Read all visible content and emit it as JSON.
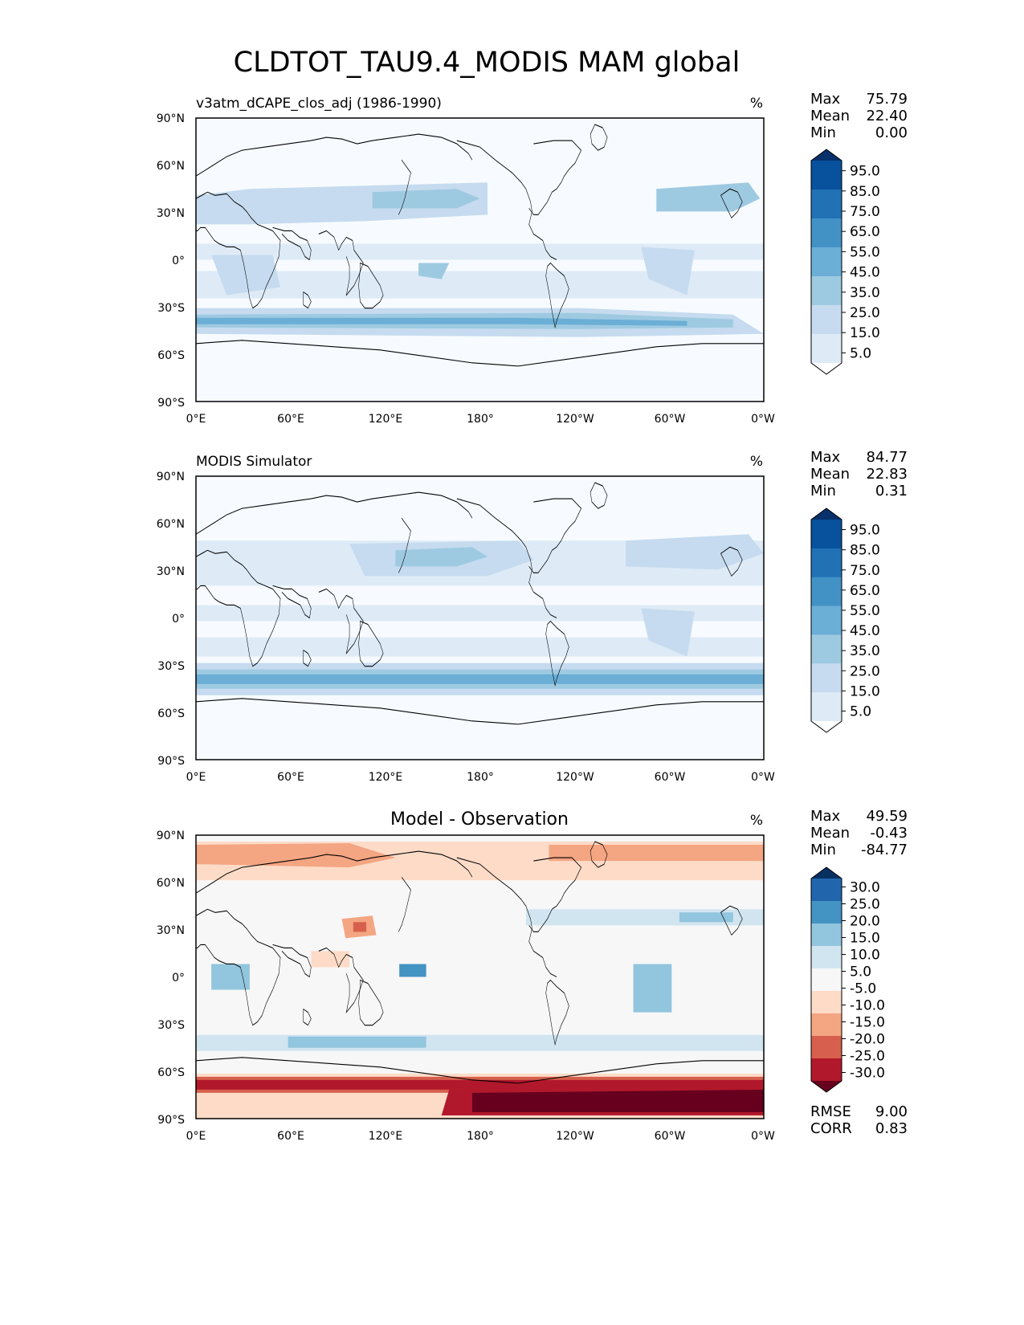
{
  "figure_title": "CLDTOT_TAU9.4_MODIS MAM global",
  "colors": {
    "blues": [
      "#f7fbff",
      "#deebf7",
      "#c6dbef",
      "#9ecae1",
      "#6baed6",
      "#4292c6",
      "#2171b5",
      "#08519c",
      "#08306b"
    ],
    "diverging": [
      "#67001f",
      "#b2182b",
      "#d6604d",
      "#f4a582",
      "#fddbc7",
      "#f7f7f7",
      "#d1e5f0",
      "#92c5de",
      "#4393c3",
      "#2166ac",
      "#053061"
    ]
  },
  "lat_ticks": [
    "90°N",
    "60°N",
    "30°N",
    "0°",
    "30°S",
    "60°S",
    "90°S"
  ],
  "lon_ticks": [
    "0°E",
    "60°E",
    "120°E",
    "180°",
    "120°W",
    "60°W",
    "0°W"
  ],
  "panels": [
    {
      "id": "test",
      "title_left": "v3atm_dCAPE_clos_adj (1986-1990)",
      "title_center": "",
      "units": "%",
      "stats": [
        {
          "label": "Max",
          "value": "75.79"
        },
        {
          "label": "Mean",
          "value": "22.40"
        },
        {
          "label": "Min",
          "value": "0.00"
        }
      ],
      "extra_stats": [],
      "colorbar_labels": [
        "95.0",
        "85.0",
        "75.0",
        "65.0",
        "55.0",
        "45.0",
        "35.0",
        "25.0",
        "15.0",
        "5.0"
      ],
      "palette": "blues"
    },
    {
      "id": "reference",
      "title_left": "MODIS Simulator",
      "title_center": "",
      "units": "%",
      "stats": [
        {
          "label": "Max",
          "value": "84.77"
        },
        {
          "label": "Mean",
          "value": "22.83"
        },
        {
          "label": "Min",
          "value": "0.31"
        }
      ],
      "extra_stats": [],
      "colorbar_labels": [
        "95.0",
        "85.0",
        "75.0",
        "65.0",
        "55.0",
        "45.0",
        "35.0",
        "25.0",
        "15.0",
        "5.0"
      ],
      "palette": "blues"
    },
    {
      "id": "difference",
      "title_left": "",
      "title_center": "Model - Observation",
      "units": "%",
      "stats": [
        {
          "label": "Max",
          "value": "49.59"
        },
        {
          "label": "Mean",
          "value": "-0.43"
        },
        {
          "label": "Min",
          "value": "-84.77"
        }
      ],
      "extra_stats": [
        {
          "label": "RMSE",
          "value": "9.00"
        },
        {
          "label": "CORR",
          "value": "0.83"
        }
      ],
      "colorbar_labels": [
        "30.0",
        "25.0",
        "20.0",
        "15.0",
        "10.0",
        "5.0",
        "-5.0",
        "-10.0",
        "-15.0",
        "-20.0",
        "-25.0",
        "-30.0"
      ],
      "palette": "diverging"
    }
  ]
}
